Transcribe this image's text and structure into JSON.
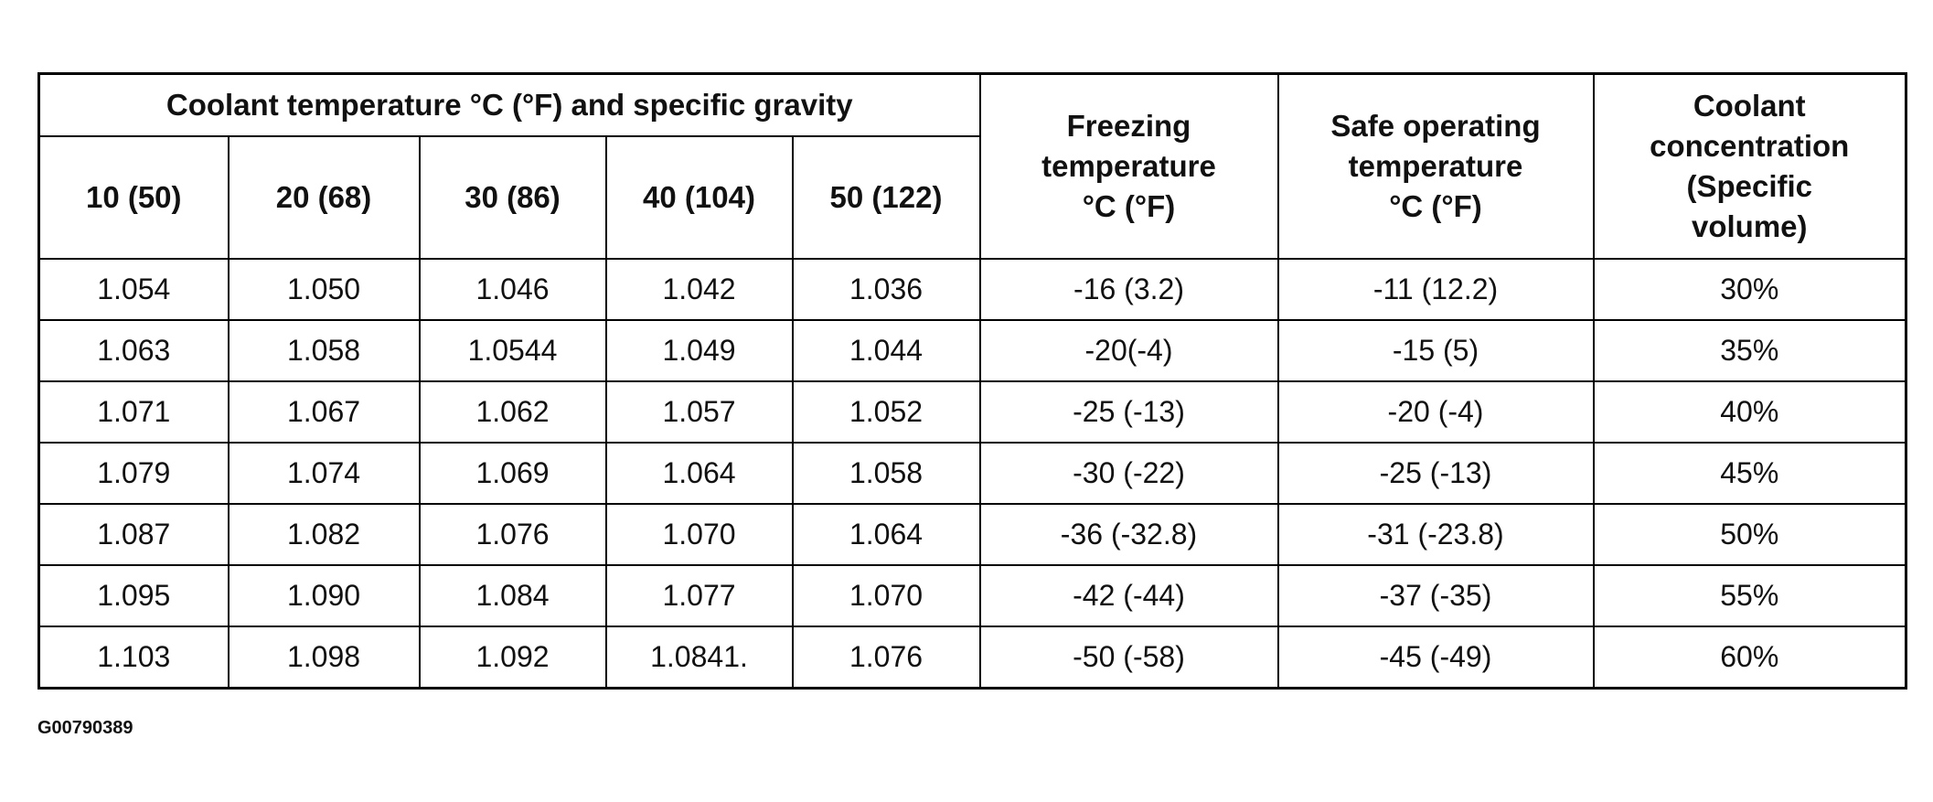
{
  "header": {
    "group_title": "Coolant temperature °C (°F) and specific gravity",
    "columns": [
      "10 (50)",
      "20 (68)",
      "30 (86)",
      "40 (104)",
      "50 (122)"
    ],
    "extra": [
      "Freezing\ntemperature\n°C (°F)",
      "Safe operating\ntemperature\n°C (°F)",
      "Coolant\nconcentration\n(Specific\nvolume)"
    ]
  },
  "table": {
    "rows": [
      [
        "1.054",
        "1.050",
        "1.046",
        "1.042",
        "1.036",
        "-16 (3.2)",
        "-11 (12.2)",
        "30%"
      ],
      [
        "1.063",
        "1.058",
        "1.0544",
        "1.049",
        "1.044",
        "-20(-4)",
        "-15 (5)",
        "35%"
      ],
      [
        "1.071",
        "1.067",
        "1.062",
        "1.057",
        "1.052",
        "-25 (-13)",
        "-20 (-4)",
        "40%"
      ],
      [
        "1.079",
        "1.074",
        "1.069",
        "1.064",
        "1.058",
        "-30 (-22)",
        "-25 (-13)",
        "45%"
      ],
      [
        "1.087",
        "1.082",
        "1.076",
        "1.070",
        "1.064",
        "-36 (-32.8)",
        "-31 (-23.8)",
        "50%"
      ],
      [
        "1.095",
        "1.090",
        "1.084",
        "1.077",
        "1.070",
        "-42 (-44)",
        "-37 (-35)",
        "55%"
      ],
      [
        "1.103",
        "1.098",
        "1.092",
        "1.0841.",
        "1.076",
        "-50 (-58)",
        "-45 (-49)",
        "60%"
      ]
    ]
  },
  "footnote": "G00790389"
}
